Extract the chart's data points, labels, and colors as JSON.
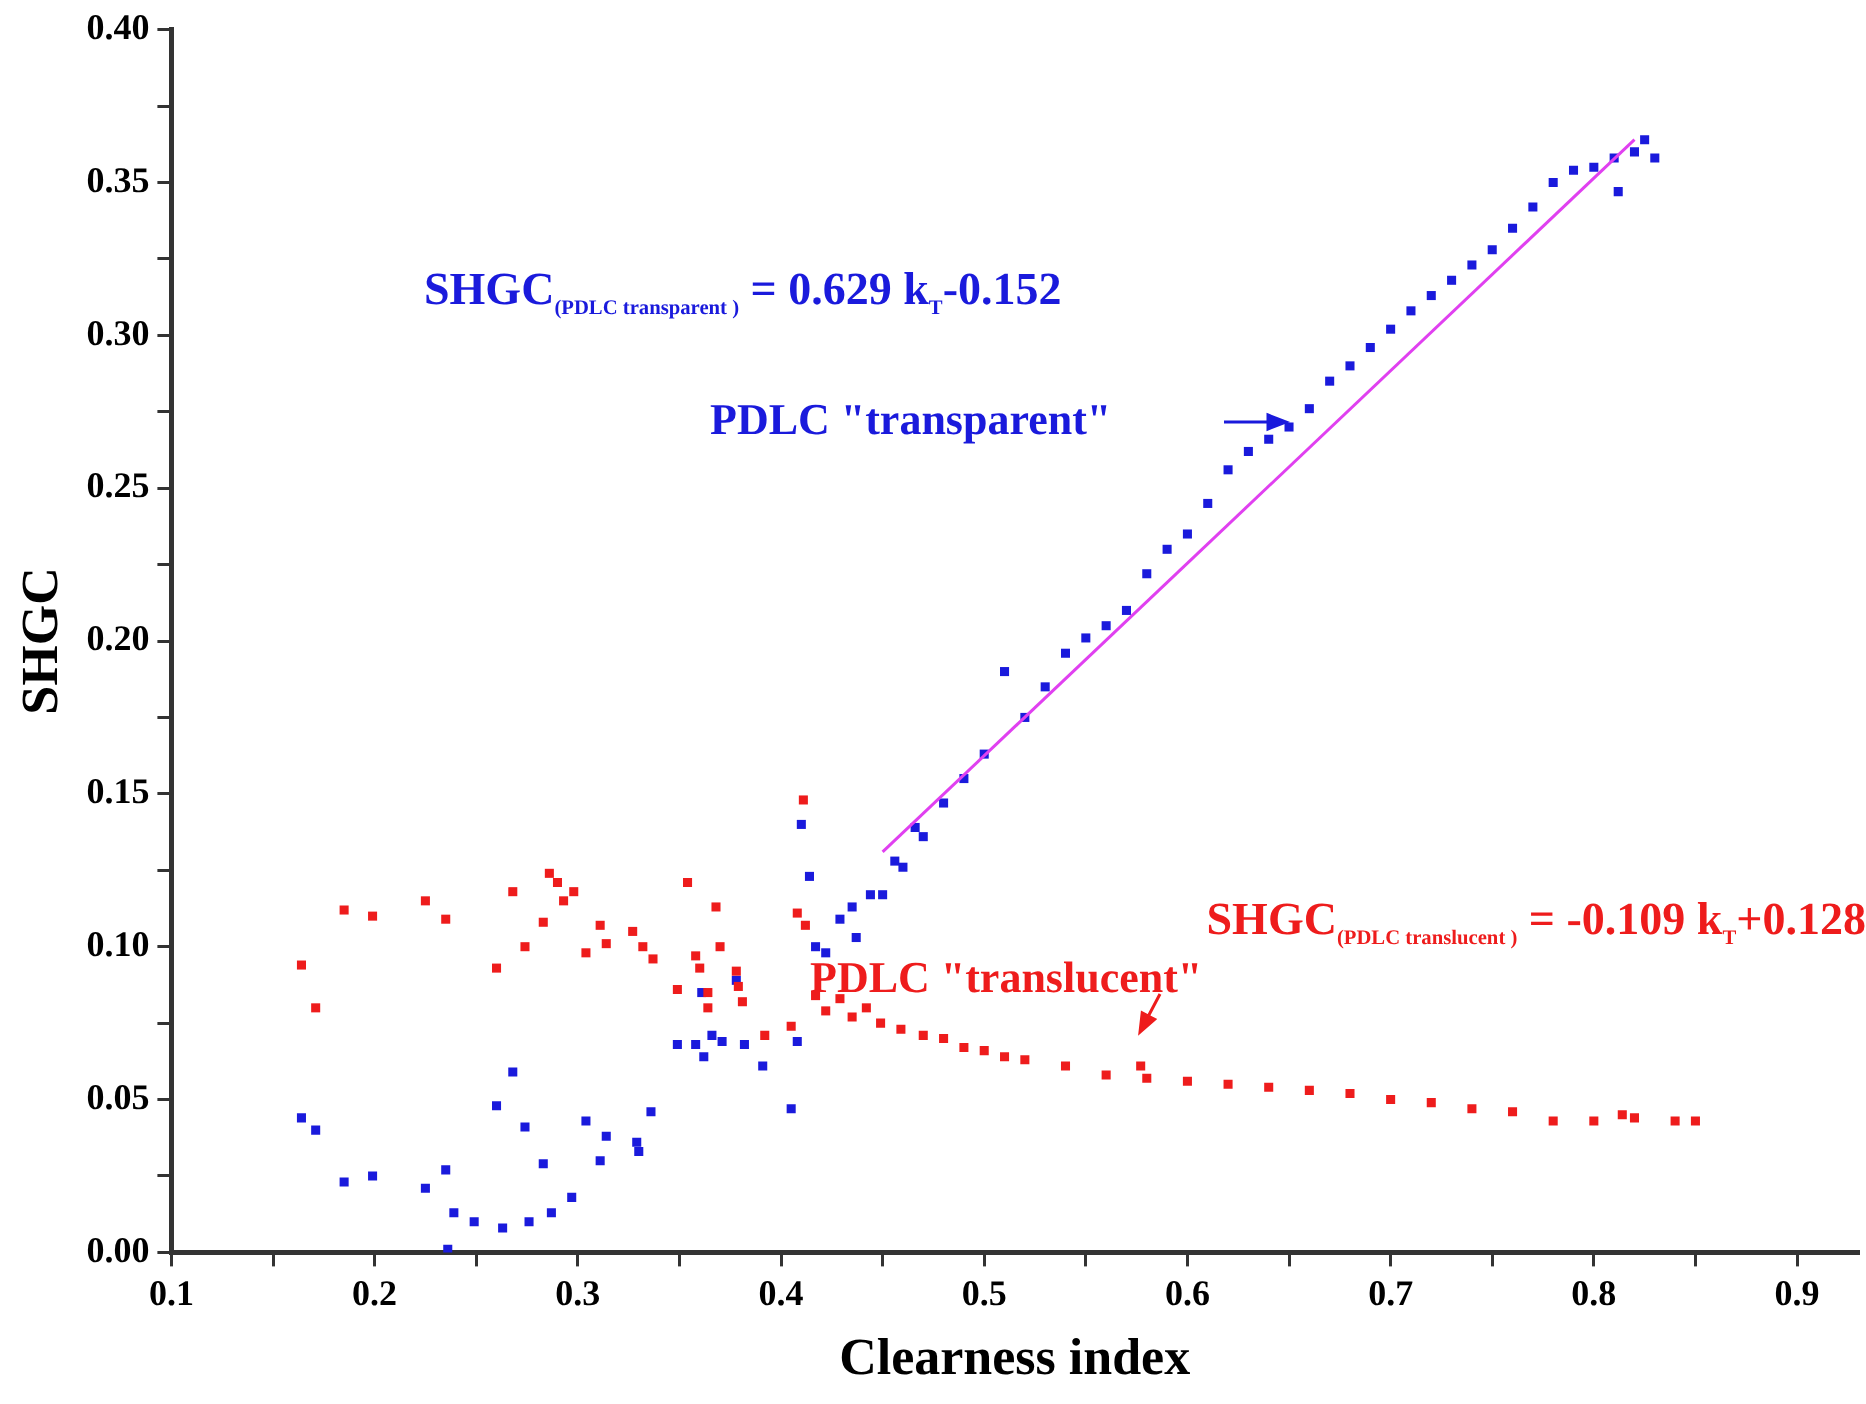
{
  "chart_data": {
    "type": "scatter",
    "xlabel": "Clearness index",
    "ylabel": "SHGC",
    "marker": "square",
    "grid": false,
    "xlim": [
      0.1,
      0.93
    ],
    "ylim": [
      0,
      0.4
    ],
    "xticks": [
      0.1,
      {
        "value": 0.15,
        "label": null
      },
      0.2,
      {
        "value": 0.25,
        "label": null
      },
      0.3,
      {
        "value": 0.35,
        "label": null
      },
      0.4,
      {
        "value": 0.45,
        "label": null
      },
      0.5,
      {
        "value": 0.55,
        "label": null
      },
      0.6,
      {
        "value": 0.65,
        "label": null
      },
      0.7,
      {
        "value": 0.75,
        "label": null
      },
      0.8,
      {
        "value": 0.85,
        "label": null
      },
      0.9
    ],
    "yticks": [
      {
        "value": 0,
        "label": "0.00"
      },
      {
        "value": 0.025,
        "label": null
      },
      {
        "value": 0.05,
        "label": "0.05"
      },
      {
        "value": 0.075,
        "label": null
      },
      {
        "value": 0.1,
        "label": "0.10"
      },
      {
        "value": 0.125,
        "label": null
      },
      {
        "value": 0.15,
        "label": "0.15"
      },
      {
        "value": 0.175,
        "label": null
      },
      {
        "value": 0.2,
        "label": "0.20"
      },
      {
        "value": 0.225,
        "label": null
      },
      {
        "value": 0.25,
        "label": "0.25"
      },
      {
        "value": 0.275,
        "label": null
      },
      {
        "value": 0.3,
        "label": "0.30"
      },
      {
        "value": 0.325,
        "label": null
      },
      {
        "value": 0.35,
        "label": "0.35"
      },
      {
        "value": 0.375,
        "label": null
      },
      {
        "value": 0.4,
        "label": "0.40"
      }
    ],
    "series": [
      {
        "color": "#1a1adc",
        "x": [
          0.164,
          0.171,
          0.185,
          0.199,
          0.225,
          0.235,
          0.236,
          0.239,
          0.249,
          0.263,
          0.276,
          0.287,
          0.297,
          0.26,
          0.268,
          0.274,
          0.283,
          0.304,
          0.311,
          0.314,
          0.329,
          0.33,
          0.336,
          0.349,
          0.358,
          0.362,
          0.366,
          0.371,
          0.361,
          0.378,
          0.382,
          0.391,
          0.405,
          0.408,
          0.41,
          0.414,
          0.417,
          0.422,
          0.429,
          0.435,
          0.437,
          0.444,
          0.45,
          0.456,
          0.46,
          0.466,
          0.47,
          0.48,
          0.49,
          0.5,
          0.51,
          0.52,
          0.53,
          0.54,
          0.55,
          0.56,
          0.57,
          0.58,
          0.59,
          0.6,
          0.61,
          0.62,
          0.63,
          0.64,
          0.65,
          0.66,
          0.67,
          0.68,
          0.69,
          0.7,
          0.71,
          0.72,
          0.73,
          0.74,
          0.75,
          0.76,
          0.77,
          0.78,
          0.79,
          0.8,
          0.81,
          0.82,
          0.83,
          0.825,
          0.812
        ],
        "values": [
          0.044,
          0.04,
          0.023,
          0.025,
          0.021,
          0.027,
          0.001,
          0.013,
          0.01,
          0.008,
          0.01,
          0.013,
          0.018,
          0.048,
          0.059,
          0.041,
          0.029,
          0.043,
          0.03,
          0.038,
          0.036,
          0.033,
          0.046,
          0.068,
          0.068,
          0.064,
          0.071,
          0.069,
          0.085,
          0.089,
          0.068,
          0.061,
          0.047,
          0.069,
          0.14,
          0.123,
          0.1,
          0.098,
          0.109,
          0.113,
          0.103,
          0.117,
          0.117,
          0.128,
          0.126,
          0.139,
          0.136,
          0.147,
          0.155,
          0.163,
          0.19,
          0.175,
          0.185,
          0.196,
          0.201,
          0.205,
          0.21,
          0.222,
          0.23,
          0.235,
          0.245,
          0.256,
          0.262,
          0.266,
          0.27,
          0.276,
          0.285,
          0.29,
          0.296,
          0.302,
          0.308,
          0.313,
          0.318,
          0.323,
          0.328,
          0.335,
          0.342,
          0.35,
          0.354,
          0.355,
          0.358,
          0.36,
          0.358,
          0.364,
          0.347
        ]
      },
      {
        "color": "#ee1c1c",
        "x": [
          0.164,
          0.171,
          0.185,
          0.199,
          0.225,
          0.235,
          0.26,
          0.268,
          0.274,
          0.283,
          0.286,
          0.29,
          0.293,
          0.298,
          0.304,
          0.311,
          0.314,
          0.327,
          0.332,
          0.337,
          0.349,
          0.354,
          0.358,
          0.36,
          0.364,
          0.364,
          0.368,
          0.37,
          0.378,
          0.379,
          0.381,
          0.392,
          0.405,
          0.408,
          0.411,
          0.412,
          0.417,
          0.422,
          0.429,
          0.435,
          0.442,
          0.449,
          0.459,
          0.47,
          0.48,
          0.49,
          0.5,
          0.51,
          0.52,
          0.54,
          0.56,
          0.577,
          0.58,
          0.6,
          0.62,
          0.64,
          0.66,
          0.68,
          0.7,
          0.72,
          0.74,
          0.76,
          0.78,
          0.8,
          0.814,
          0.82,
          0.84,
          0.85
        ],
        "values": [
          0.094,
          0.08,
          0.112,
          0.11,
          0.115,
          0.109,
          0.093,
          0.118,
          0.1,
          0.108,
          0.124,
          0.121,
          0.115,
          0.118,
          0.098,
          0.107,
          0.101,
          0.105,
          0.1,
          0.096,
          0.086,
          0.121,
          0.097,
          0.093,
          0.085,
          0.08,
          0.113,
          0.1,
          0.092,
          0.087,
          0.082,
          0.071,
          0.074,
          0.111,
          0.148,
          0.107,
          0.084,
          0.079,
          0.083,
          0.077,
          0.08,
          0.075,
          0.073,
          0.071,
          0.07,
          0.067,
          0.066,
          0.064,
          0.063,
          0.061,
          0.058,
          0.061,
          0.057,
          0.056,
          0.055,
          0.054,
          0.053,
          0.052,
          0.05,
          0.049,
          0.047,
          0.046,
          0.043,
          0.043,
          0.045,
          0.044,
          0.043,
          0.043
        ]
      },
      {
        "type": "line",
        "color": "#e040f0",
        "marker": "none",
        "x": [
          0.45,
          0.82
        ],
        "values": [
          0.131,
          0.364
        ]
      }
    ],
    "annotations": [
      "SHGC$_{(PDLC transparent )}$ = 0.629 k$_{T}$-0.152",
      "PDLC \"transparent\"",
      "SHGC$_{(PDLC translucent )}$ = -0.109 k$_{T}$+0.128",
      "PDLC \"translucent\""
    ]
  }
}
